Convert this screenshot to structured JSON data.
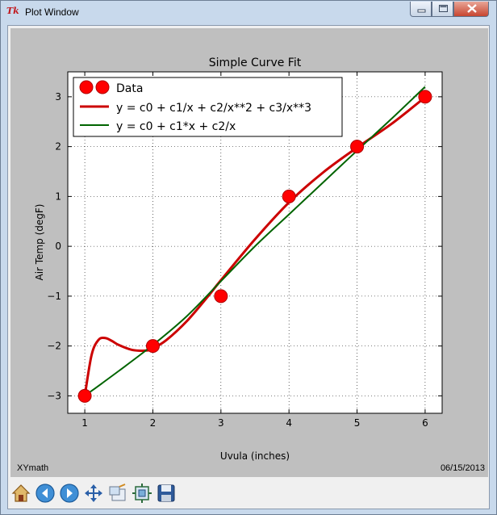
{
  "window": {
    "title": "Plot Window",
    "icon": "tk-feather-icon"
  },
  "footer": {
    "left": "XYmath",
    "right": "06/15/2013"
  },
  "toolbar": {
    "buttons": [
      "home-icon",
      "back-icon",
      "forward-icon",
      "pan-icon",
      "zoom-icon",
      "subplots-icon",
      "save-icon"
    ]
  },
  "chart_data": {
    "type": "line",
    "title": "Simple Curve Fit",
    "xlabel": "Uvula (inches)",
    "ylabel": "Air Temp (degF)",
    "xlim": [
      0.75,
      6.25
    ],
    "ylim": [
      -3.35,
      3.5
    ],
    "xticks": [
      "1",
      "2",
      "3",
      "4",
      "5",
      "6"
    ],
    "yticks": [
      "−3",
      "−2",
      "−1",
      "0",
      "1",
      "2",
      "3"
    ],
    "grid": true,
    "legend_position": "top-left",
    "series": [
      {
        "name": "Data",
        "kind": "markers",
        "color": "#ff0000",
        "x": [
          1,
          2,
          3,
          4,
          5,
          6
        ],
        "y": [
          -3,
          -2,
          -1,
          1,
          2,
          3
        ]
      },
      {
        "name": "y = c0 + c1/x + c2/x**2 + c3/x**3",
        "kind": "line",
        "color": "#cc0000",
        "x": [
          1.0,
          1.1,
          1.2,
          1.3,
          1.4,
          1.5,
          1.7,
          1.9,
          2.0,
          2.2,
          2.5,
          2.8,
          3.0,
          3.5,
          4.0,
          4.5,
          5.0,
          5.5,
          6.0
        ],
        "y": [
          -3.0,
          -2.18,
          -1.88,
          -1.84,
          -1.9,
          -1.98,
          -2.08,
          -2.09,
          -2.05,
          -1.88,
          -1.5,
          -1.02,
          -0.68,
          0.14,
          0.88,
          1.48,
          1.98,
          2.45,
          2.99
        ]
      },
      {
        "name": "y = c0 + c1*x + c2/x",
        "kind": "line",
        "color": "#006400",
        "x": [
          1.0,
          1.5,
          2.0,
          2.5,
          3.0,
          3.5,
          4.0,
          4.5,
          5.0,
          5.5,
          6.0
        ],
        "y": [
          -3.0,
          -2.5,
          -1.98,
          -1.4,
          -0.7,
          0.0,
          0.64,
          1.28,
          1.92,
          2.55,
          3.2
        ]
      }
    ]
  }
}
